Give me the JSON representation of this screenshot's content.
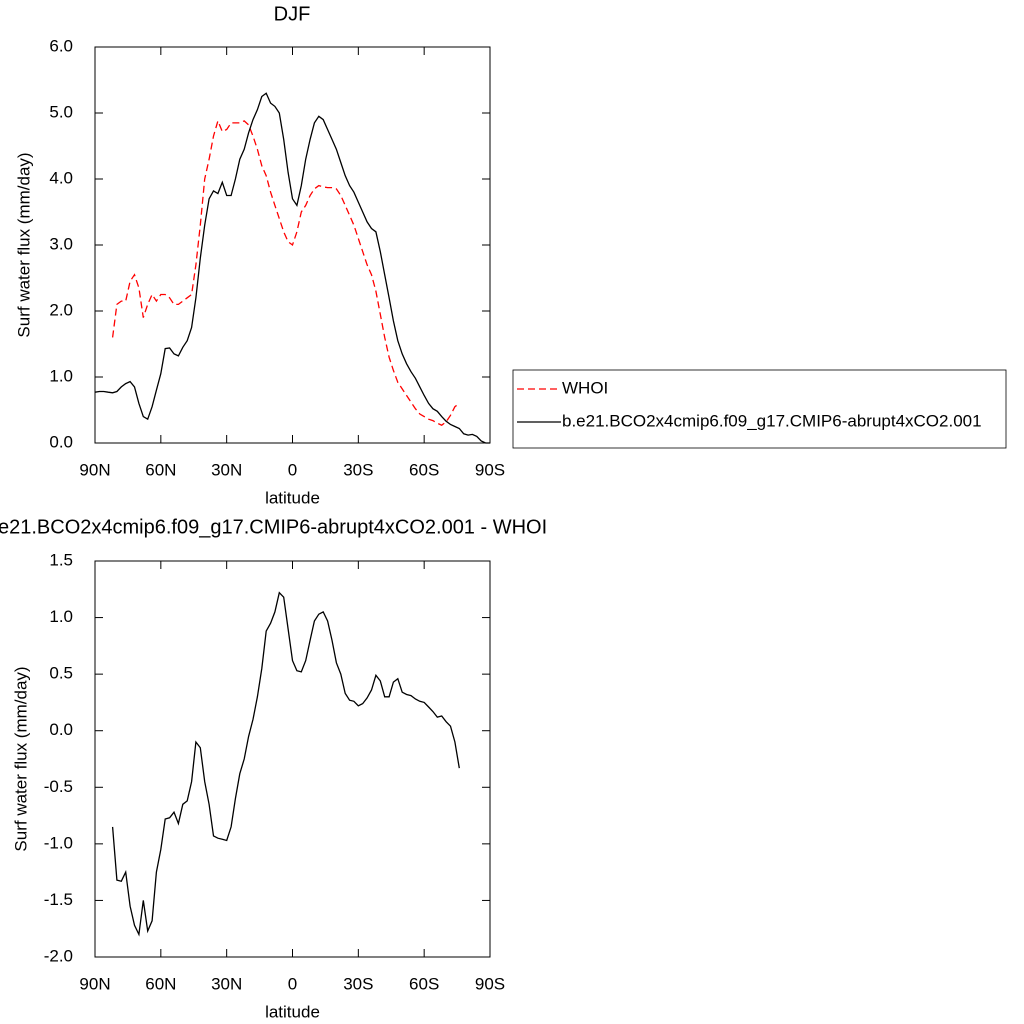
{
  "chart_data": [
    {
      "type": "line",
      "title": "DJF",
      "xlabel": "latitude",
      "ylabel": "Surf water flux (mm/day)",
      "x": [
        90,
        88,
        86,
        84,
        82,
        80,
        78,
        76,
        74,
        72,
        70,
        68,
        66,
        64,
        62,
        60,
        58,
        56,
        54,
        52,
        50,
        48,
        46,
        44,
        42,
        40,
        38,
        36,
        34,
        32,
        30,
        28,
        26,
        24,
        22,
        20,
        18,
        16,
        14,
        12,
        10,
        8,
        6,
        4,
        2,
        0,
        -2,
        -4,
        -6,
        -8,
        -10,
        -12,
        -14,
        -16,
        -18,
        -20,
        -22,
        -24,
        -26,
        -28,
        -30,
        -32,
        -34,
        -36,
        -38,
        -40,
        -42,
        -44,
        -46,
        -48,
        -50,
        -52,
        -54,
        -56,
        -58,
        -60,
        -62,
        -64,
        -66,
        -68,
        -70,
        -72,
        -74,
        -76,
        -78,
        -80,
        -82,
        -84,
        -86,
        -88,
        -90
      ],
      "xlim": [
        90,
        -90
      ],
      "xticks": [
        {
          "value": 90,
          "label": "90N"
        },
        {
          "value": 60,
          "label": "60N"
        },
        {
          "value": 30,
          "label": "30N"
        },
        0,
        {
          "value": -30,
          "label": "30S"
        },
        {
          "value": -60,
          "label": "60S"
        },
        {
          "value": -90,
          "label": "90S"
        }
      ],
      "ylim": [
        0,
        6
      ],
      "yticks": [
        {
          "value": 0,
          "label": "0.0"
        },
        {
          "value": 1,
          "label": "1.0"
        },
        {
          "value": 2,
          "label": "2.0"
        },
        {
          "value": 3,
          "label": "3.0"
        },
        {
          "value": 4,
          "label": "4.0"
        },
        {
          "value": 5,
          "label": "5.0"
        },
        {
          "value": 6,
          "label": "6.0"
        }
      ],
      "legend": "right",
      "series": [
        {
          "name": "WHOI",
          "color": "#ff0000",
          "line_style": "dashed",
          "values": [
            null,
            null,
            null,
            null,
            1.6,
            2.1,
            2.15,
            2.15,
            2.45,
            2.55,
            2.35,
            1.9,
            2.1,
            2.25,
            2.15,
            2.25,
            2.25,
            2.2,
            2.1,
            2.1,
            2.15,
            2.2,
            2.25,
            2.7,
            3.3,
            4.0,
            4.3,
            4.65,
            4.88,
            4.72,
            4.75,
            4.85,
            4.85,
            4.85,
            4.88,
            4.82,
            4.65,
            4.45,
            4.2,
            4.05,
            3.8,
            3.6,
            3.4,
            3.2,
            3.05,
            3.0,
            3.2,
            3.5,
            3.6,
            3.75,
            3.85,
            3.9,
            3.88,
            3.87,
            3.87,
            3.85,
            3.75,
            3.6,
            3.45,
            3.3,
            3.1,
            2.9,
            2.7,
            2.55,
            2.3,
            1.95,
            1.6,
            1.3,
            1.1,
            0.92,
            0.82,
            0.72,
            0.62,
            0.52,
            0.44,
            0.4,
            0.36,
            0.34,
            0.3,
            0.27,
            0.32,
            0.42,
            0.55,
            0.6,
            null,
            null,
            null,
            null,
            null,
            null,
            null
          ]
        },
        {
          "name": "b.e21.BCO2x4cmip6.f09_g17.CMIP6-abrupt4xCO2.001",
          "color": "#000000",
          "line_style": "solid",
          "values": [
            0.77,
            0.78,
            0.78,
            0.77,
            0.76,
            0.78,
            0.85,
            0.9,
            0.93,
            0.85,
            0.6,
            0.4,
            0.36,
            0.55,
            0.8,
            1.05,
            1.43,
            1.44,
            1.35,
            1.32,
            1.45,
            1.55,
            1.75,
            2.2,
            2.8,
            3.3,
            3.7,
            3.82,
            3.78,
            3.95,
            3.75,
            3.75,
            4.0,
            4.3,
            4.45,
            4.7,
            4.9,
            5.05,
            5.25,
            5.3,
            5.15,
            5.1,
            5.0,
            4.6,
            4.1,
            3.7,
            3.6,
            3.9,
            4.3,
            4.6,
            4.85,
            4.95,
            4.9,
            4.75,
            4.6,
            4.45,
            4.25,
            4.05,
            3.9,
            3.8,
            3.65,
            3.5,
            3.35,
            3.25,
            3.2,
            2.9,
            2.55,
            2.2,
            1.85,
            1.55,
            1.35,
            1.2,
            1.08,
            0.98,
            0.85,
            0.72,
            0.6,
            0.52,
            0.48,
            0.4,
            0.33,
            0.28,
            0.25,
            0.22,
            0.14,
            0.12,
            0.13,
            0.1,
            0.03,
            0.0,
            0.0
          ]
        }
      ]
    },
    {
      "type": "line",
      "title": "e21.BCO2x4cmip6.f09_g17.CMIP6-abrupt4xCO2.001 - WHOI",
      "xlabel": "latitude",
      "ylabel": "Surf water flux (mm/day)",
      "x": [
        82,
        80,
        78,
        76,
        74,
        72,
        70,
        68,
        66,
        64,
        62,
        60,
        58,
        56,
        54,
        52,
        50,
        48,
        46,
        44,
        42,
        40,
        38,
        36,
        34,
        32,
        30,
        28,
        26,
        24,
        22,
        20,
        18,
        16,
        14,
        12,
        10,
        8,
        6,
        4,
        2,
        0,
        -2,
        -4,
        -6,
        -8,
        -10,
        -12,
        -14,
        -16,
        -18,
        -20,
        -22,
        -24,
        -26,
        -28,
        -30,
        -32,
        -34,
        -36,
        -38,
        -40,
        -42,
        -44,
        -46,
        -48,
        -50,
        -52,
        -54,
        -56,
        -58,
        -60,
        -62,
        -64,
        -66,
        -68,
        -70,
        -72,
        -74,
        -76
      ],
      "xlim": [
        90,
        -90
      ],
      "xticks": [
        {
          "value": 90,
          "label": "90N"
        },
        {
          "value": 60,
          "label": "60N"
        },
        {
          "value": 30,
          "label": "30N"
        },
        0,
        {
          "value": -30,
          "label": "30S"
        },
        {
          "value": -60,
          "label": "60S"
        },
        {
          "value": -90,
          "label": "90S"
        }
      ],
      "ylim": [
        -2,
        1.5
      ],
      "yticks": [
        {
          "value": -2,
          "label": "-2.0"
        },
        -1.5,
        {
          "value": -1,
          "label": "-1.0"
        },
        -0.5,
        {
          "value": 0,
          "label": "0.0"
        },
        0.5,
        {
          "value": 1,
          "label": "1.0"
        },
        1.5
      ],
      "series": [
        {
          "color": "#000000",
          "line_style": "solid",
          "values": [
            -0.85,
            -1.32,
            -1.33,
            -1.25,
            -1.55,
            -1.72,
            -1.8,
            -1.5,
            -1.77,
            -1.68,
            -1.25,
            -1.05,
            -0.78,
            -0.77,
            -0.72,
            -0.82,
            -0.65,
            -0.62,
            -0.45,
            -0.1,
            -0.15,
            -0.45,
            -0.65,
            -0.93,
            -0.95,
            -0.96,
            -0.97,
            -0.85,
            -0.6,
            -0.38,
            -0.25,
            -0.05,
            0.1,
            0.3,
            0.55,
            0.88,
            0.95,
            1.05,
            1.22,
            1.18,
            0.9,
            0.62,
            0.53,
            0.52,
            0.62,
            0.8,
            0.97,
            1.03,
            1.05,
            0.97,
            0.8,
            0.6,
            0.5,
            0.33,
            0.27,
            0.26,
            0.22,
            0.24,
            0.29,
            0.36,
            0.49,
            0.44,
            0.3,
            0.3,
            0.43,
            0.46,
            0.34,
            0.32,
            0.31,
            0.28,
            0.26,
            0.25,
            0.21,
            0.17,
            0.12,
            0.13,
            0.08,
            0.04,
            -0.1,
            -0.33
          ]
        }
      ]
    }
  ]
}
